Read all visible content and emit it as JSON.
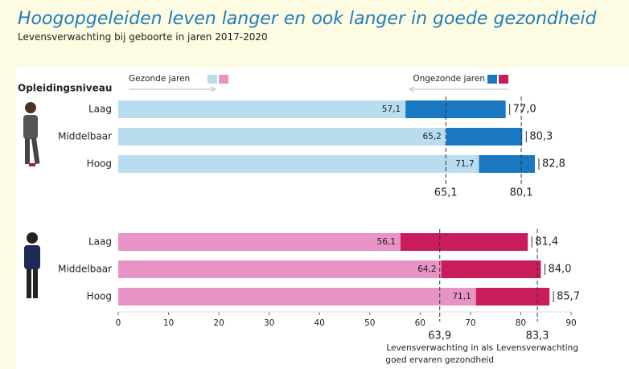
{
  "chart_data": [
    {
      "type": "bar",
      "title": "Hoogopgeleiden leven langer en ook langer in goede gezondheid",
      "subtitle": "Levensverwachting bij geboorte in jaren 2017-2020",
      "y_axis_label": "Opleidingsniveau",
      "categories": [
        "Laag",
        "Middelbaar",
        "Hoog"
      ],
      "series": [
        {
          "name": "Ongezonde jaren",
          "color": "#1a78c2",
          "values": [
            77.0,
            80.3,
            82.8
          ],
          "value_labels": [
            "77,0",
            "80,3",
            "82,8"
          ]
        },
        {
          "name": "Gezonde jaren",
          "color": "#b9dcef",
          "values": [
            57.1,
            65.2,
            71.7
          ],
          "value_labels": [
            "57,1",
            "65,2",
            "71,7"
          ]
        }
      ],
      "reference_lines": [
        {
          "value": 65.1,
          "label": "65,1"
        },
        {
          "value": 80.1,
          "label": "80,1"
        }
      ],
      "xlim": [
        0,
        90
      ]
    },
    {
      "type": "bar",
      "categories": [
        "Laag",
        "Middelbaar",
        "Hoog"
      ],
      "series": [
        {
          "name": "Ongezonde jaren",
          "color": "#c91c5d",
          "values": [
            81.4,
            84.0,
            85.7
          ],
          "value_labels": [
            "81,4",
            "84,0",
            "85,7"
          ]
        },
        {
          "name": "Gezonde jaren",
          "color": "#e793c3",
          "values": [
            56.1,
            64.2,
            71.1
          ],
          "value_labels": [
            "56,1",
            "64,2",
            "71,1"
          ]
        }
      ],
      "reference_lines": [
        {
          "value": 63.9,
          "label": "63,9",
          "annotation": [
            "Levensverwachting in als",
            "goed ervaren gezondheid"
          ]
        },
        {
          "value": 83.3,
          "label": "83,3",
          "annotation": [
            "Levensverwachting"
          ]
        }
      ],
      "xlim": [
        0,
        90
      ],
      "xticks": [
        0,
        10,
        20,
        30,
        40,
        50,
        60,
        70,
        80,
        90
      ]
    }
  ]
}
